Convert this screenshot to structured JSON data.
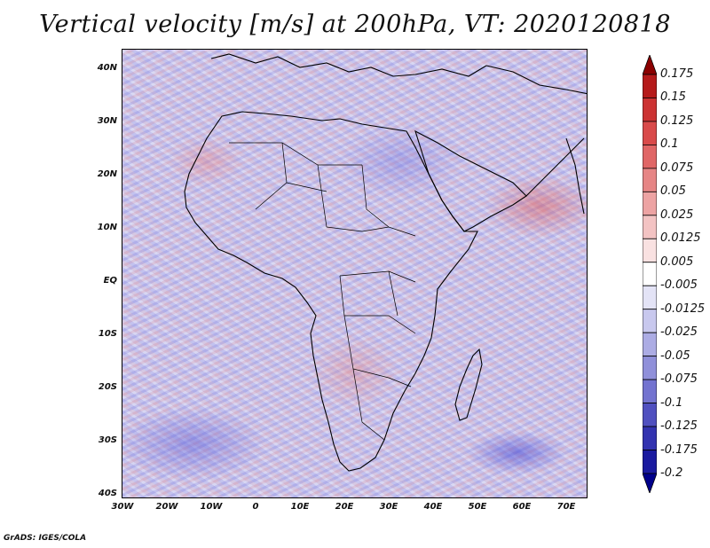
{
  "title": "Vertical velocity [m/s] at 200hPa, VT: 2020120818",
  "lat_labels": [
    "40N",
    "30N",
    "20N",
    "10N",
    "EQ",
    "10S",
    "20S",
    "30S",
    "40S"
  ],
  "lon_labels": [
    "30W",
    "20W",
    "10W",
    "0",
    "10E",
    "20E",
    "30E",
    "40E",
    "50E",
    "60E",
    "70E"
  ],
  "colorbar": {
    "levels": [
      "0.175",
      "0.15",
      "0.125",
      "0.1",
      "0.075",
      "0.05",
      "0.025",
      "0.0125",
      "0.005",
      "-0.005",
      "-0.0125",
      "-0.025",
      "-0.05",
      "-0.075",
      "-0.1",
      "-0.125",
      "-0.175",
      "-0.2"
    ],
    "colors": [
      "#8b0000",
      "#b51a1a",
      "#cc3333",
      "#d94a4a",
      "#e06666",
      "#e68585",
      "#eda3a3",
      "#f3c3c3",
      "#f9e1e1",
      "#ffffff",
      "#e3e3f6",
      "#c8c8ee",
      "#acace4",
      "#9090da",
      "#7373d0",
      "#5050c0",
      "#3333b0",
      "#1a1aa0",
      "#00008b"
    ]
  },
  "credit": "GrADS: IGES/COLA"
}
